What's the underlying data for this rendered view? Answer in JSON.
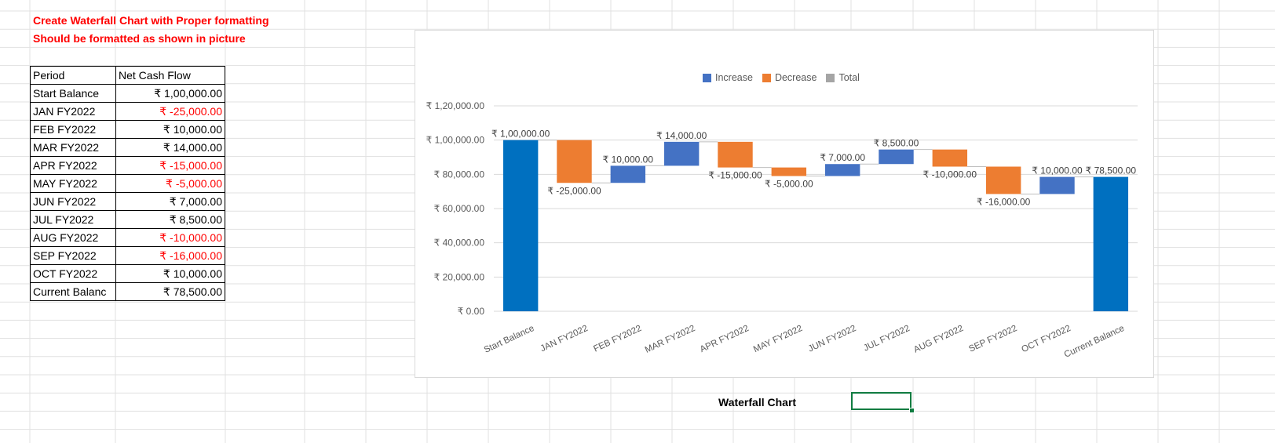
{
  "notes": {
    "line1": "Create Waterfall Chart with Proper formatting",
    "line2": "Should be formatted as shown in picture"
  },
  "table": {
    "headers": [
      "Period",
      "Net Cash Flow"
    ],
    "rows": [
      {
        "period": "Start Balance",
        "value": "₹ 1,00,000.00",
        "negative": false
      },
      {
        "period": "JAN FY2022",
        "value": "₹ -25,000.00",
        "negative": true
      },
      {
        "period": "FEB FY2022",
        "value": "₹ 10,000.00",
        "negative": false
      },
      {
        "period": "MAR FY2022",
        "value": "₹ 14,000.00",
        "negative": false
      },
      {
        "period": "APR FY2022",
        "value": "₹ -15,000.00",
        "negative": true
      },
      {
        "period": "MAY FY2022",
        "value": "₹ -5,000.00",
        "negative": true
      },
      {
        "period": "JUN FY2022",
        "value": "₹ 7,000.00",
        "negative": false
      },
      {
        "period": "JUL FY2022",
        "value": "₹ 8,500.00",
        "negative": false
      },
      {
        "period": "AUG FY2022",
        "value": "₹ -10,000.00",
        "negative": true
      },
      {
        "period": "SEP FY2022",
        "value": "₹ -16,000.00",
        "negative": true
      },
      {
        "period": "OCT FY2022",
        "value": "₹ 10,000.00",
        "negative": false
      },
      {
        "period": "Current Balanc",
        "value": "₹ 78,500.00",
        "negative": false
      }
    ]
  },
  "caption": "Waterfall Chart",
  "colors": {
    "increase": "#4472c4",
    "decrease": "#ed7d31",
    "total": "#a5a5a5",
    "total_bar": "#0070c0",
    "negative_text": "#ff0000",
    "cell_border": "#107c41"
  },
  "chart_data": {
    "type": "bar",
    "subtype": "waterfall",
    "categories": [
      "Start Balance",
      "JAN FY2022",
      "FEB FY2022",
      "MAR FY2022",
      "APR FY2022",
      "MAY FY2022",
      "JUN FY2022",
      "JUL FY2022",
      "AUG FY2022",
      "SEP FY2022",
      "OCT FY2022",
      "Current Balance"
    ],
    "values": [
      100000,
      -25000,
      10000,
      14000,
      -15000,
      -5000,
      7000,
      8500,
      -10000,
      -16000,
      10000,
      78500
    ],
    "kinds": [
      "total",
      "change",
      "change",
      "change",
      "change",
      "change",
      "change",
      "change",
      "change",
      "change",
      "change",
      "total"
    ],
    "data_labels": [
      "₹ 1,00,000.00",
      "₹ -25,000.00",
      "₹ 10,000.00",
      "₹ 14,000.00",
      "₹ -15,000.00",
      "₹ -5,000.00",
      "₹ 7,000.00",
      "₹ 8,500.00",
      "₹ -10,000.00",
      "₹ -16,000.00",
      "₹ 10,000.00",
      "₹ 78,500.00"
    ],
    "ylim": [
      0,
      120000
    ],
    "yticks": [
      0,
      20000,
      40000,
      60000,
      80000,
      100000,
      120000
    ],
    "ytick_labels": [
      "₹ 0.00",
      "₹ 20,000.00",
      "₹ 40,000.00",
      "₹ 60,000.00",
      "₹ 80,000.00",
      "₹ 1,00,000.00",
      "₹ 1,20,000.00"
    ],
    "legend": [
      "Increase",
      "Decrease",
      "Total"
    ],
    "legend_position": "top",
    "grid": true,
    "title": "",
    "xlabel": "",
    "ylabel": ""
  }
}
